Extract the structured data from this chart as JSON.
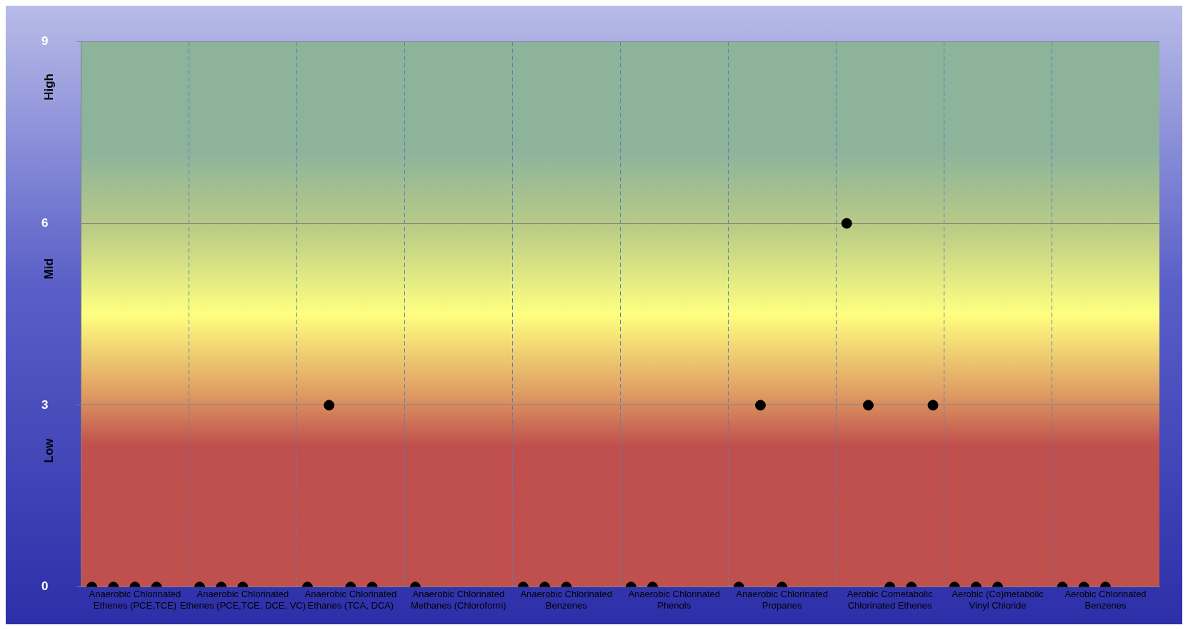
{
  "chart_data": {
    "type": "scatter",
    "categories": [
      null,
      null,
      "Anaerobic Chlorinated Ethenes (PCE,TCE)",
      null,
      null,
      null,
      null,
      "Anaerobic Chlorinated Ethenes (PCE,TCE, DCE, VC)",
      null,
      null,
      null,
      null,
      "Anaerobic Chlorinated Ethanes (TCA, DCA)",
      null,
      null,
      null,
      null,
      "Anaerobic Chlorinated Methanes (Chloroform)",
      null,
      null,
      null,
      null,
      "Anaerobic Chlorinated Benzenes",
      null,
      null,
      null,
      null,
      "Anaerobic Chlorinated Phenols",
      null,
      null,
      null,
      null,
      "Anaerobic Chlorinated Propanes",
      null,
      null,
      null,
      null,
      "Aerobic Cometabolic Chlorinated Ethenes",
      null,
      null,
      null,
      null,
      "Aerobic (Co)metabolic Vinyl Chloride",
      null,
      null,
      null,
      null,
      "Aerobic Chlorinated Benzenes",
      null,
      null
    ],
    "series": [
      {
        "color": "#000000",
        "values": [
          0,
          0,
          0,
          0,
          null,
          0,
          0,
          0,
          null,
          null,
          0,
          3,
          0,
          0,
          null,
          0,
          null,
          null,
          null,
          null,
          0,
          0,
          0,
          null,
          null,
          0,
          0,
          null,
          null,
          null,
          0,
          3,
          0,
          null,
          null,
          6,
          3,
          0,
          0,
          3,
          0,
          0,
          0,
          null,
          null,
          0,
          0,
          0,
          null,
          null
        ]
      }
    ],
    "ylim": [
      0,
      9
    ],
    "yticks": [
      0,
      3,
      6,
      9
    ],
    "grid": true,
    "marker": "circle",
    "legend": false,
    "annotations": [
      "Low",
      "Mid",
      "High"
    ]
  }
}
